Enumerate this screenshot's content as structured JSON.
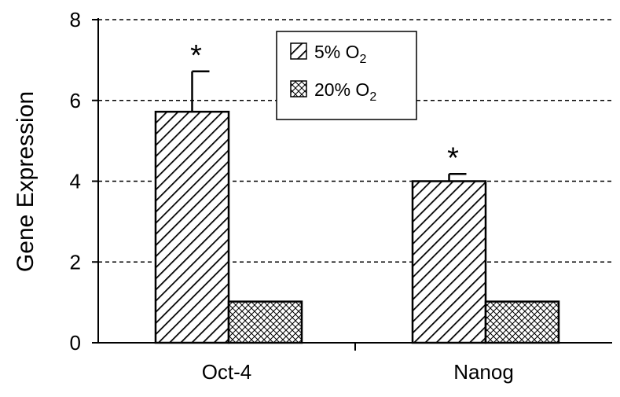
{
  "chart_data": {
    "type": "bar",
    "title": "",
    "xlabel": "",
    "ylabel": "Gene Expression",
    "ylim": [
      0,
      8
    ],
    "yticks": [
      0,
      2,
      4,
      6,
      8
    ],
    "grid": true,
    "legend_position": "top-center",
    "categories": [
      "Oct-4",
      "Nanog"
    ],
    "series": [
      {
        "name": "5% O",
        "subscript": "2",
        "values": [
          5.72,
          4.0
        ],
        "errors": [
          1.0,
          0.18
        ],
        "pattern": "diagonal-hatch"
      },
      {
        "name": "20% O",
        "subscript": "2",
        "values": [
          1.02,
          1.02
        ],
        "errors": [
          0,
          0
        ],
        "pattern": "crosshatch"
      }
    ],
    "annotations": [
      {
        "text": "*",
        "category": "Oct-4",
        "series": 0
      },
      {
        "text": "*",
        "category": "Nanog",
        "series": 0
      }
    ]
  }
}
